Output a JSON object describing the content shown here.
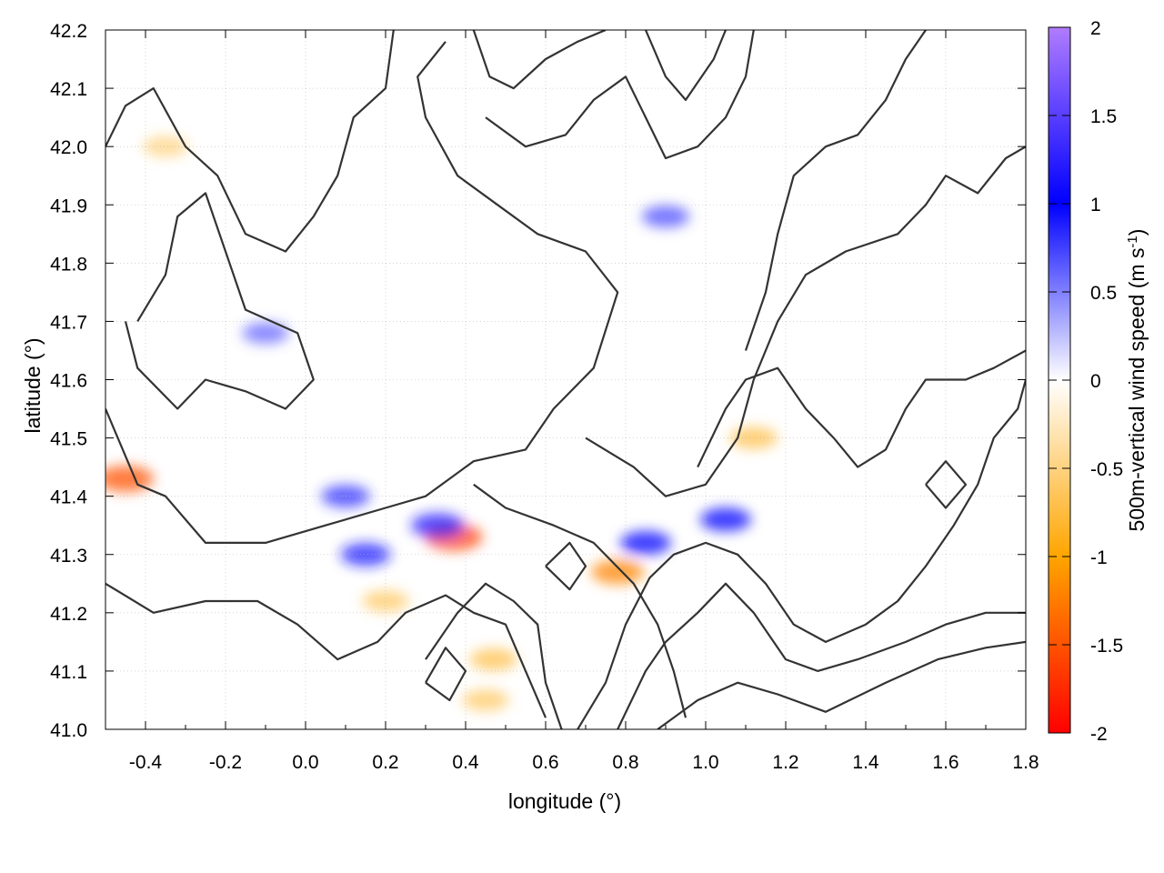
{
  "chart_data": {
    "type": "heatmap",
    "title": "",
    "xlabel": "longitude (°)",
    "ylabel": "latitude (°)",
    "colorbar_label_main": "500m-vertical wind speed (m s",
    "colorbar_label_sup": "-1",
    "colorbar_label_end": ")",
    "xlim": [
      -0.5,
      1.8
    ],
    "ylim": [
      41.0,
      42.2
    ],
    "xticks": [
      -0.4,
      -0.2,
      0.0,
      0.2,
      0.4,
      0.6,
      0.8,
      1.0,
      1.2,
      1.4,
      1.6,
      1.8
    ],
    "xtick_labels": [
      "-0.4",
      "-0.2",
      "0.0",
      "0.2",
      "0.4",
      "0.6",
      "0.8",
      "1.0",
      "1.2",
      "1.4",
      "1.6",
      "1.8"
    ],
    "yticks": [
      41.0,
      41.1,
      41.2,
      41.3,
      41.4,
      41.5,
      41.6,
      41.7,
      41.8,
      41.9,
      42.0,
      42.1,
      42.2
    ],
    "ytick_labels": [
      "41.0",
      "41.1",
      "41.2",
      "41.3",
      "41.4",
      "41.5",
      "41.6",
      "41.7",
      "41.8",
      "41.9",
      "42.0",
      "42.1",
      "42.2"
    ],
    "colorbar_range": [
      -2,
      2
    ],
    "colorbar_ticks": [
      2,
      1.5,
      1,
      0.5,
      0,
      -0.5,
      -1,
      -1.5,
      -2
    ],
    "colorbar_tick_labels": [
      "2",
      "1.5",
      "1",
      "0.5",
      "0",
      "-0.5",
      "-1",
      "-1.5",
      "-2"
    ],
    "colormap": [
      {
        "value": -2,
        "color": "#ff0000"
      },
      {
        "value": -1,
        "color": "#ffa500"
      },
      {
        "value": 0,
        "color": "#ffffff"
      },
      {
        "value": 1,
        "color": "#0000ff"
      },
      {
        "value": 2,
        "color": "#b07cff"
      }
    ],
    "grid": true,
    "contour_color": "#333333",
    "hotspots": [
      {
        "x": 0.37,
        "y": 41.33,
        "value": -1.6
      },
      {
        "x": 0.33,
        "y": 41.35,
        "value": 1.2
      },
      {
        "x": 0.47,
        "y": 41.12,
        "value": -0.7
      },
      {
        "x": 0.45,
        "y": 41.05,
        "value": -0.6
      },
      {
        "x": -0.45,
        "y": 41.43,
        "value": -1.5
      },
      {
        "x": 0.2,
        "y": 41.22,
        "value": -0.6
      },
      {
        "x": 0.15,
        "y": 41.3,
        "value": 0.9
      },
      {
        "x": 0.78,
        "y": 41.27,
        "value": -1.2
      },
      {
        "x": 0.85,
        "y": 41.32,
        "value": 1.0
      },
      {
        "x": 1.05,
        "y": 41.36,
        "value": 1.0
      },
      {
        "x": 1.12,
        "y": 41.5,
        "value": -0.7
      },
      {
        "x": -0.1,
        "y": 41.68,
        "value": 0.6
      },
      {
        "x": -0.35,
        "y": 42.0,
        "value": -0.5
      },
      {
        "x": 0.9,
        "y": 41.88,
        "value": 0.7
      },
      {
        "x": 0.1,
        "y": 41.4,
        "value": 0.8
      }
    ],
    "contours": [
      [
        [
          -0.5,
          42.0
        ],
        [
          -0.45,
          42.07
        ],
        [
          -0.38,
          42.1
        ],
        [
          -0.3,
          42.0
        ],
        [
          -0.22,
          41.95
        ],
        [
          -0.15,
          41.85
        ],
        [
          -0.05,
          41.82
        ],
        [
          0.02,
          41.88
        ],
        [
          0.08,
          41.95
        ],
        [
          0.12,
          42.05
        ],
        [
          0.2,
          42.1
        ],
        [
          0.22,
          42.2
        ]
      ],
      [
        [
          -0.42,
          41.7
        ],
        [
          -0.35,
          41.78
        ],
        [
          -0.32,
          41.88
        ],
        [
          -0.25,
          41.92
        ],
        [
          -0.15,
          41.72
        ],
        [
          -0.02,
          41.68
        ],
        [
          0.02,
          41.6
        ],
        [
          -0.05,
          41.55
        ],
        [
          -0.15,
          41.58
        ],
        [
          -0.25,
          41.6
        ],
        [
          -0.32,
          41.55
        ],
        [
          -0.42,
          41.62
        ],
        [
          -0.45,
          41.7
        ]
      ],
      [
        [
          -0.5,
          41.55
        ],
        [
          -0.42,
          41.42
        ],
        [
          -0.35,
          41.4
        ],
        [
          -0.25,
          41.32
        ],
        [
          -0.1,
          41.32
        ],
        [
          0.05,
          41.35
        ],
        [
          0.2,
          41.38
        ],
        [
          0.3,
          41.4
        ],
        [
          0.42,
          41.46
        ],
        [
          0.55,
          41.48
        ],
        [
          0.62,
          41.55
        ],
        [
          0.72,
          41.62
        ],
        [
          0.78,
          41.75
        ],
        [
          0.7,
          41.82
        ],
        [
          0.58,
          41.85
        ],
        [
          0.48,
          41.9
        ],
        [
          0.38,
          41.95
        ],
        [
          0.3,
          42.05
        ],
        [
          0.28,
          42.12
        ],
        [
          0.35,
          42.18
        ]
      ],
      [
        [
          0.42,
          41.42
        ],
        [
          0.5,
          41.38
        ],
        [
          0.62,
          41.35
        ],
        [
          0.72,
          41.32
        ],
        [
          0.82,
          41.25
        ],
        [
          0.88,
          41.18
        ],
        [
          0.92,
          41.1
        ],
        [
          0.95,
          41.02
        ]
      ],
      [
        [
          -0.5,
          41.25
        ],
        [
          -0.38,
          41.2
        ],
        [
          -0.25,
          41.22
        ],
        [
          -0.12,
          41.22
        ],
        [
          -0.02,
          41.18
        ],
        [
          0.08,
          41.12
        ],
        [
          0.18,
          41.15
        ],
        [
          0.25,
          41.2
        ],
        [
          0.35,
          41.23
        ],
        [
          0.42,
          41.2
        ],
        [
          0.5,
          41.18
        ],
        [
          0.55,
          41.1
        ],
        [
          0.6,
          41.02
        ]
      ],
      [
        [
          0.3,
          41.12
        ],
        [
          0.38,
          41.2
        ],
        [
          0.45,
          41.25
        ],
        [
          0.52,
          41.22
        ],
        [
          0.58,
          41.18
        ],
        [
          0.6,
          41.08
        ],
        [
          0.64,
          41.0
        ]
      ],
      [
        [
          0.68,
          41.0
        ],
        [
          0.75,
          41.08
        ],
        [
          0.8,
          41.18
        ],
        [
          0.86,
          41.26
        ],
        [
          0.92,
          41.3
        ],
        [
          1.0,
          41.32
        ],
        [
          1.08,
          41.3
        ],
        [
          1.15,
          41.25
        ],
        [
          1.22,
          41.18
        ],
        [
          1.3,
          41.15
        ],
        [
          1.4,
          41.18
        ],
        [
          1.48,
          41.22
        ],
        [
          1.55,
          41.28
        ],
        [
          1.62,
          41.35
        ],
        [
          1.68,
          41.42
        ],
        [
          1.72,
          41.5
        ],
        [
          1.78,
          41.55
        ],
        [
          1.8,
          41.6
        ]
      ],
      [
        [
          0.78,
          41.0
        ],
        [
          0.85,
          41.1
        ],
        [
          0.9,
          41.15
        ],
        [
          0.98,
          41.2
        ],
        [
          1.05,
          41.25
        ],
        [
          1.12,
          41.2
        ],
        [
          1.2,
          41.12
        ],
        [
          1.28,
          41.1
        ],
        [
          1.38,
          41.12
        ],
        [
          1.5,
          41.15
        ],
        [
          1.6,
          41.18
        ],
        [
          1.7,
          41.2
        ],
        [
          1.8,
          41.2
        ]
      ],
      [
        [
          0.88,
          41.0
        ],
        [
          0.98,
          41.05
        ],
        [
          1.08,
          41.08
        ],
        [
          1.18,
          41.06
        ],
        [
          1.3,
          41.03
        ],
        [
          1.45,
          41.08
        ],
        [
          1.58,
          41.12
        ],
        [
          1.7,
          41.14
        ],
        [
          1.8,
          41.15
        ]
      ],
      [
        [
          0.7,
          41.5
        ],
        [
          0.82,
          41.45
        ],
        [
          0.9,
          41.4
        ],
        [
          1.0,
          41.42
        ],
        [
          1.08,
          41.5
        ],
        [
          1.12,
          41.6
        ],
        [
          1.18,
          41.7
        ],
        [
          1.25,
          41.78
        ],
        [
          1.35,
          41.82
        ],
        [
          1.48,
          41.85
        ],
        [
          1.55,
          41.9
        ],
        [
          1.6,
          41.95
        ],
        [
          1.68,
          41.92
        ],
        [
          1.75,
          41.98
        ],
        [
          1.8,
          42.0
        ]
      ],
      [
        [
          0.98,
          41.45
        ],
        [
          1.05,
          41.55
        ],
        [
          1.1,
          41.6
        ],
        [
          1.18,
          41.62
        ],
        [
          1.25,
          41.55
        ],
        [
          1.32,
          41.5
        ],
        [
          1.38,
          41.45
        ],
        [
          1.45,
          41.48
        ],
        [
          1.5,
          41.55
        ],
        [
          1.55,
          41.6
        ],
        [
          1.65,
          41.6
        ],
        [
          1.72,
          41.62
        ],
        [
          1.8,
          41.65
        ]
      ],
      [
        [
          1.1,
          41.65
        ],
        [
          1.15,
          41.75
        ],
        [
          1.18,
          41.85
        ],
        [
          1.22,
          41.95
        ],
        [
          1.3,
          42.0
        ],
        [
          1.38,
          42.02
        ],
        [
          1.45,
          42.08
        ],
        [
          1.5,
          42.15
        ],
        [
          1.55,
          42.2
        ]
      ],
      [
        [
          0.45,
          42.05
        ],
        [
          0.55,
          42.0
        ],
        [
          0.65,
          42.02
        ],
        [
          0.72,
          42.08
        ],
        [
          0.8,
          42.12
        ],
        [
          0.85,
          42.05
        ],
        [
          0.9,
          41.98
        ],
        [
          0.98,
          42.0
        ],
        [
          1.05,
          42.05
        ],
        [
          1.1,
          42.12
        ],
        [
          1.12,
          42.2
        ]
      ],
      [
        [
          0.42,
          42.2
        ],
        [
          0.46,
          42.12
        ],
        [
          0.52,
          42.1
        ],
        [
          0.6,
          42.15
        ],
        [
          0.68,
          42.18
        ],
        [
          0.75,
          42.2
        ]
      ],
      [
        [
          0.85,
          42.2
        ],
        [
          0.9,
          42.12
        ],
        [
          0.95,
          42.08
        ],
        [
          1.02,
          42.15
        ],
        [
          1.05,
          42.2
        ]
      ],
      [
        [
          0.6,
          41.28
        ],
        [
          0.66,
          41.24
        ],
        [
          0.7,
          41.28
        ],
        [
          0.66,
          41.32
        ],
        [
          0.6,
          41.28
        ]
      ],
      [
        [
          0.3,
          41.08
        ],
        [
          0.36,
          41.05
        ],
        [
          0.4,
          41.1
        ],
        [
          0.35,
          41.14
        ],
        [
          0.3,
          41.08
        ]
      ],
      [
        [
          1.55,
          41.42
        ],
        [
          1.6,
          41.38
        ],
        [
          1.65,
          41.42
        ],
        [
          1.6,
          41.46
        ],
        [
          1.55,
          41.42
        ]
      ]
    ]
  }
}
